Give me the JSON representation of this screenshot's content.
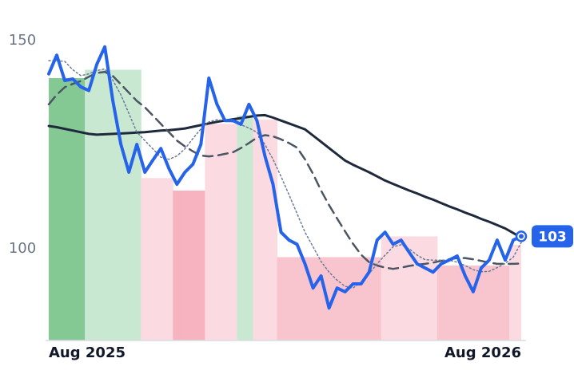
{
  "chart_data": {
    "type": "line",
    "categories": [
      "Aug 2025",
      null,
      null,
      null,
      null,
      null,
      null,
      null,
      null,
      null,
      null,
      null,
      null,
      null,
      null,
      null,
      null,
      null,
      null,
      null,
      null,
      null,
      null,
      null,
      null,
      null,
      null,
      null,
      null,
      null,
      null,
      null,
      null,
      null,
      null,
      null,
      null,
      null,
      null,
      null,
      null,
      null,
      null,
      null,
      null,
      null,
      null,
      null,
      null,
      null,
      null,
      null,
      null,
      null,
      null,
      null,
      null,
      null,
      null,
      "Aug 2026"
    ],
    "ylim": [
      78,
      154
    ],
    "yticks": [
      100,
      150
    ],
    "grid": false,
    "bands": {
      "values": [
        141,
        141,
        141,
        141,
        141,
        143,
        143,
        143,
        143,
        143,
        143,
        143,
        117,
        117,
        117,
        117,
        114,
        114,
        114,
        114,
        130,
        130,
        130,
        130,
        132,
        132,
        131,
        131,
        131,
        98,
        98,
        98,
        98,
        98,
        98,
        98,
        98,
        98,
        98,
        98,
        98,
        98,
        103,
        103,
        103,
        103,
        103,
        103,
        103,
        96,
        96,
        96,
        96,
        96,
        96,
        96,
        96,
        96,
        101,
        101
      ],
      "colors": [
        "#84c994",
        "#84c994",
        "#84c994",
        "#84c994",
        "#84c994",
        "#c8e8d2",
        "#c8e8d2",
        "#c8e8d2",
        "#c8e8d2",
        "#c8e8d2",
        "#c8e8d2",
        "#c8e8d2",
        "#fbdbe1",
        "#fbdbe1",
        "#fbdbe1",
        "#fbdbe1",
        "#f7b3c0",
        "#f7b3c0",
        "#f7b3c0",
        "#f7b3c0",
        "#fbdbe1",
        "#fbdbe1",
        "#fbdbe1",
        "#fbdbe1",
        "#c8e8d2",
        "#c8e8d2",
        "#fbdbe1",
        "#fbdbe1",
        "#fbdbe1",
        "#f8c4ce",
        "#f8c4ce",
        "#f8c4ce",
        "#f8c4ce",
        "#f8c4ce",
        "#f8c4ce",
        "#f8c4ce",
        "#f8c4ce",
        "#f8c4ce",
        "#f8c4ce",
        "#f8c4ce",
        "#f8c4ce",
        "#f8c4ce",
        "#fbdbe1",
        "#fbdbe1",
        "#fbdbe1",
        "#fbdbe1",
        "#fbdbe1",
        "#fbdbe1",
        "#fbdbe1",
        "#f8c4ce",
        "#f8c4ce",
        "#f8c4ce",
        "#f8c4ce",
        "#f8c4ce",
        "#f8c4ce",
        "#f8c4ce",
        "#f8c4ce",
        "#f8c4ce",
        "#fbdbe1",
        "#fbdbe1"
      ]
    },
    "series": [
      {
        "color": "#2563eb",
        "style": "solid",
        "width": 4,
        "values": [
          142,
          146.5,
          140.4,
          140.8,
          138.9,
          138,
          144.3,
          148.5,
          135.6,
          125.1,
          118.4,
          125.1,
          118.4,
          121.3,
          124.1,
          119.3,
          115.5,
          118.4,
          120.3,
          125.1,
          141,
          134.7,
          130.8,
          130.8,
          129.9,
          134.7,
          130.8,
          122.2,
          115.5,
          104,
          102.1,
          101.1,
          96.4,
          90.6,
          93.5,
          85.8,
          90.6,
          89.7,
          91.6,
          91.6,
          94.4,
          102.1,
          104,
          101.1,
          102.1,
          99.2,
          96.4,
          95.4,
          94.4,
          96.4,
          97.3,
          98.3,
          93.5,
          89.7,
          95.4,
          97.3,
          102.1,
          97.3,
          102.1,
          103
        ]
      },
      {
        "color": "#6b7a99",
        "style": "dotted",
        "width": 1.5,
        "values": [
          145.2,
          145.2,
          145,
          143,
          141.6,
          142,
          142.8,
          143.2,
          140.5,
          137,
          132.5,
          128,
          126,
          124,
          122,
          121.5,
          122.3,
          124,
          126.5,
          128.8,
          130.5,
          131,
          130.8,
          130.5,
          129.8,
          129,
          128,
          125,
          121.5,
          117.4,
          113,
          108.5,
          104,
          100.5,
          97,
          94.4,
          92.5,
          91,
          90.6,
          92,
          94,
          96.4,
          98.5,
          100.5,
          101,
          100,
          98.5,
          97.4,
          97.3,
          97.3,
          97.3,
          96.8,
          96,
          95,
          94.5,
          94.6,
          95.5,
          96.5,
          98,
          101.5
        ]
      },
      {
        "color": "#4b5563",
        "style": "dashed",
        "width": 2.5,
        "values": [
          134.7,
          137,
          138.8,
          139.6,
          140.3,
          141.3,
          142.2,
          142.5,
          141.5,
          139.5,
          137.5,
          135.5,
          134,
          132,
          130,
          128,
          126,
          124.6,
          123.4,
          122.4,
          122.2,
          122.4,
          122.8,
          123.2,
          124.2,
          125.4,
          126.7,
          127.3,
          127,
          126.3,
          125.4,
          124.3,
          121.5,
          118,
          114,
          110.5,
          107.3,
          104.2,
          101.2,
          98.6,
          96.8,
          96,
          95.5,
          95.2,
          95.5,
          95.9,
          96.2,
          96.4,
          96.7,
          97.1,
          97.5,
          97.8,
          97.8,
          97.5,
          97.1,
          96.7,
          96.4,
          96.4,
          96.4,
          96.5
        ]
      },
      {
        "color": "#1e293b",
        "style": "solid",
        "width": 3,
        "values": [
          129.5,
          129.2,
          128.8,
          128.4,
          128,
          127.6,
          127.4,
          127.5,
          127.6,
          127.7,
          127.8,
          127.9,
          128,
          128.2,
          128.4,
          128.5,
          128.7,
          128.9,
          129.3,
          129.7,
          130.1,
          130.5,
          130.8,
          131.1,
          131.4,
          131.7,
          132,
          132.1,
          131.5,
          130.8,
          130.1,
          129.4,
          128.7,
          127.2,
          125.7,
          124.2,
          122.7,
          121.2,
          120.2,
          119.3,
          118.4,
          117.4,
          116.4,
          115.6,
          114.8,
          114,
          113.3,
          112.5,
          111.8,
          111,
          110.2,
          109.5,
          108.7,
          108,
          107.2,
          106.5,
          105.7,
          104.9,
          103.8,
          102.7
        ]
      }
    ]
  }
}
